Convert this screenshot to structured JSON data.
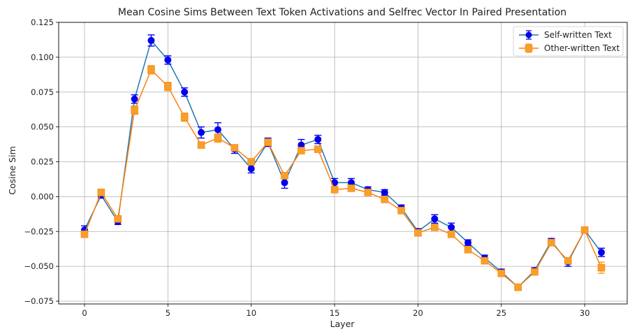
{
  "chart_data": {
    "type": "line",
    "title": "Mean Cosine Sims Between Text Token Activations and Selfrec Vector In Paired Presentation",
    "xlabel": "Layer",
    "ylabel": "Cosine Sim",
    "xlim": [
      -1.55,
      32.55
    ],
    "ylim": [
      -0.077,
      0.125
    ],
    "x_ticks": [
      0,
      5,
      10,
      15,
      20,
      25,
      30
    ],
    "x_tick_labels": [
      "0",
      "5",
      "10",
      "15",
      "20",
      "25",
      "30"
    ],
    "y_ticks": [
      -0.075,
      -0.05,
      -0.025,
      0.0,
      0.025,
      0.05,
      0.075,
      0.1,
      0.125
    ],
    "y_tick_labels": [
      "−0.075",
      "−0.050",
      "−0.025",
      "0.000",
      "0.025",
      "0.050",
      "0.075",
      "0.100",
      "0.125"
    ],
    "grid": true,
    "legend_position": "top-right",
    "x": [
      0,
      1,
      2,
      3,
      4,
      5,
      6,
      7,
      8,
      9,
      10,
      11,
      12,
      13,
      14,
      15,
      16,
      17,
      18,
      19,
      20,
      21,
      22,
      23,
      24,
      25,
      26,
      27,
      28,
      29,
      30,
      31
    ],
    "series": [
      {
        "name": "Self-written Text",
        "line_color": "#1f77b4",
        "marker_color": "#0000ee",
        "marker": "circle",
        "values": [
          -0.024,
          0.001,
          -0.018,
          0.07,
          0.112,
          0.098,
          0.075,
          0.046,
          0.048,
          0.034,
          0.02,
          0.039,
          0.01,
          0.037,
          0.041,
          0.01,
          0.01,
          0.005,
          0.003,
          -0.008,
          -0.025,
          -0.016,
          -0.022,
          -0.033,
          -0.044,
          -0.054,
          -0.065,
          -0.053,
          -0.032,
          -0.047,
          -0.024,
          -0.04
        ],
        "errors": [
          0.003,
          0.002,
          0.002,
          0.003,
          0.004,
          0.003,
          0.003,
          0.004,
          0.005,
          0.003,
          0.003,
          0.003,
          0.004,
          0.004,
          0.003,
          0.003,
          0.003,
          0.002,
          0.002,
          0.002,
          0.002,
          0.003,
          0.003,
          0.002,
          0.002,
          0.002,
          0.002,
          0.002,
          0.002,
          0.003,
          0.002,
          0.003
        ]
      },
      {
        "name": "Other-written Text",
        "line_color": "#ff7f0e",
        "marker_color": "#f5a02a",
        "marker": "square",
        "values": [
          -0.027,
          0.003,
          -0.016,
          0.062,
          0.091,
          0.079,
          0.057,
          0.037,
          0.042,
          0.035,
          0.025,
          0.039,
          0.015,
          0.033,
          0.034,
          0.005,
          0.006,
          0.003,
          -0.002,
          -0.01,
          -0.026,
          -0.022,
          -0.027,
          -0.038,
          -0.046,
          -0.055,
          -0.065,
          -0.054,
          -0.033,
          -0.046,
          -0.024,
          -0.051
        ],
        "errors": [
          0.002,
          0.002,
          0.002,
          0.003,
          0.003,
          0.003,
          0.003,
          0.002,
          0.003,
          0.002,
          0.002,
          0.002,
          0.002,
          0.002,
          0.002,
          0.002,
          0.002,
          0.002,
          0.002,
          0.002,
          0.002,
          0.002,
          0.002,
          0.002,
          0.002,
          0.002,
          0.002,
          0.002,
          0.002,
          0.002,
          0.002,
          0.004
        ]
      }
    ]
  }
}
